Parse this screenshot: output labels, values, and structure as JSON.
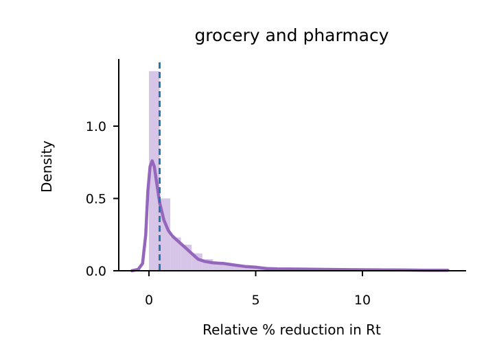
{
  "chart_data": {
    "type": "histogram",
    "title": "grocery and pharmacy",
    "xlabel": "Relative % reduction in Rt",
    "ylabel": "Density",
    "xlim": [
      -1.5,
      14.9
    ],
    "ylim": [
      0,
      1.45
    ],
    "xticks": [
      0,
      5,
      10
    ],
    "xtick_labels": [
      "0",
      "5",
      "10"
    ],
    "yticks": [
      0,
      0.5,
      1.0
    ],
    "ytick_labels": [
      "0.0",
      "0.5",
      "1.0"
    ],
    "grid": false,
    "colors": {
      "histogram": "#d6c5e6",
      "kde": "#9467bd",
      "mean_line": "#1f77b4"
    },
    "histogram": {
      "bin_edges": [
        0,
        0.5,
        1.0,
        1.5,
        2.0,
        2.5,
        3.0,
        3.5,
        4.0,
        4.5,
        5.0,
        5.5,
        6.0,
        6.5,
        7.0,
        8.0,
        9.0,
        10.0,
        11.0,
        12.0,
        13.0,
        14.0
      ],
      "densities": [
        1.38,
        0.5,
        0.23,
        0.18,
        0.12,
        0.08,
        0.06,
        0.05,
        0.04,
        0.035,
        0.03,
        0.025,
        0.02,
        0.018,
        0.015,
        0.012,
        0.01,
        0.008,
        0.006,
        0.005,
        0.004
      ]
    },
    "kde": {
      "x": [
        -0.8,
        -0.5,
        -0.3,
        -0.15,
        -0.05,
        0.05,
        0.15,
        0.25,
        0.35,
        0.5,
        0.7,
        0.9,
        1.1,
        1.4,
        1.7,
        2.0,
        2.3,
        2.6,
        3.0,
        3.5,
        4.0,
        4.5,
        5.0,
        5.5,
        6.0,
        7.0,
        8.0,
        9.0,
        10.0,
        11.0,
        12.0,
        13.0,
        14.0
      ],
      "y": [
        0.0,
        0.01,
        0.05,
        0.25,
        0.55,
        0.72,
        0.76,
        0.72,
        0.62,
        0.47,
        0.35,
        0.28,
        0.24,
        0.2,
        0.16,
        0.12,
        0.08,
        0.065,
        0.055,
        0.05,
        0.04,
        0.03,
        0.025,
        0.015,
        0.013,
        0.012,
        0.01,
        0.008,
        0.007,
        0.006,
        0.005,
        0.004,
        0.004
      ]
    },
    "mean_line_x": 0.5
  }
}
